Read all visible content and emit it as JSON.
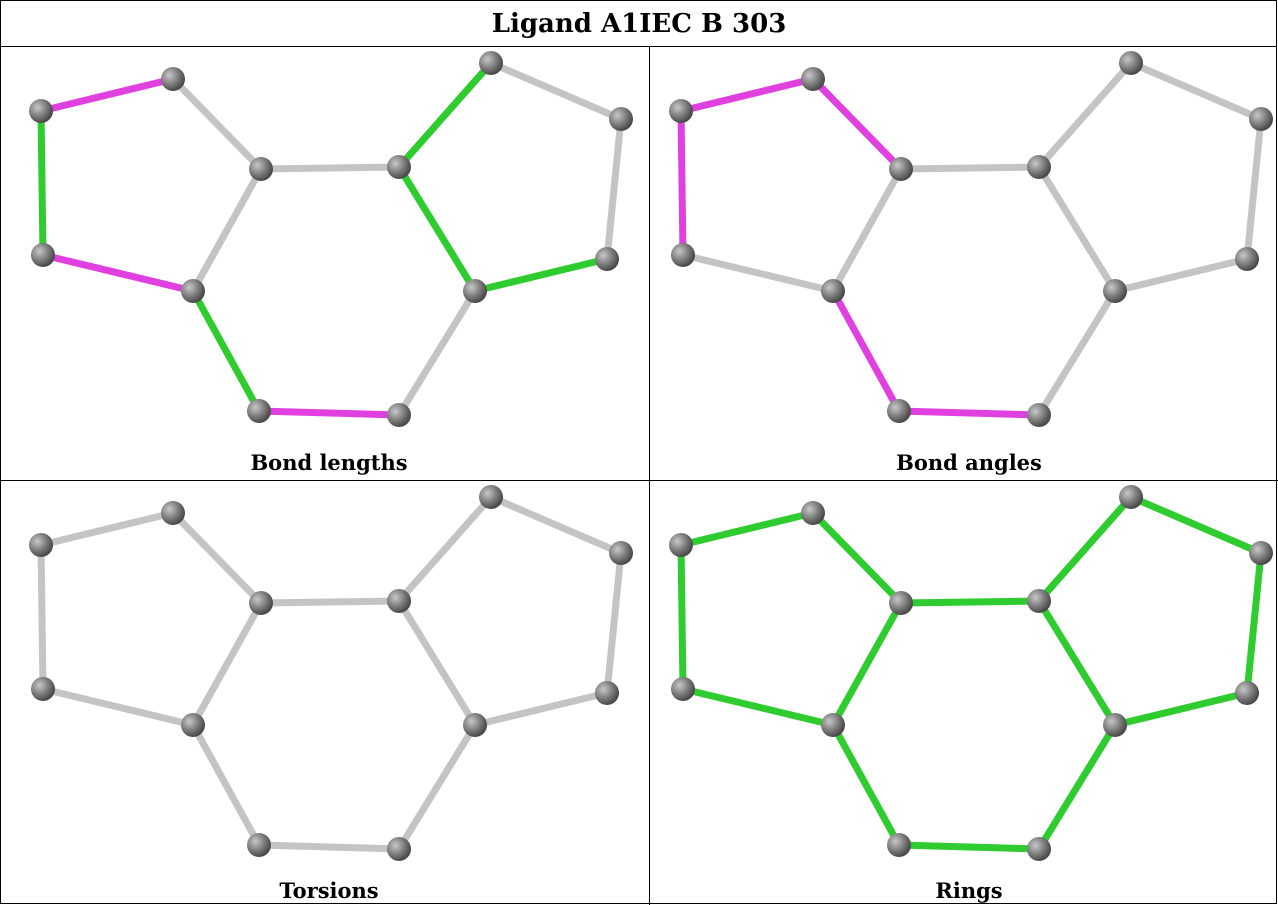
{
  "title": "Ligand A1IEC B 303",
  "colors": {
    "atom": "#7a7a7a",
    "bond_default": "#c4c4c4",
    "bond_magenta": "#e040e0",
    "bond_green": "#2ecc2e"
  },
  "panels": [
    {
      "label": "Bond lengths",
      "bond_colors": [
        "magenta",
        "green",
        "magenta",
        "green",
        "magenta",
        "grey",
        "grey",
        "grey",
        "grey",
        "green",
        "grey",
        "grey",
        "grey",
        "green",
        "green",
        "green"
      ]
    },
    {
      "label": "Bond angles",
      "bond_colors": [
        "magenta",
        "magenta",
        "grey",
        "magenta",
        "magenta",
        "magenta",
        "grey",
        "grey",
        "grey",
        "grey",
        "grey",
        "grey",
        "grey",
        "grey",
        "grey",
        "grey"
      ]
    },
    {
      "label": "Torsions",
      "bond_colors": [
        "grey",
        "grey",
        "grey",
        "grey",
        "grey",
        "grey",
        "grey",
        "grey",
        "grey",
        "grey",
        "grey",
        "grey",
        "grey",
        "grey",
        "grey",
        "grey"
      ]
    },
    {
      "label": "Rings",
      "bond_colors": [
        "green",
        "green",
        "green",
        "green",
        "green",
        "green",
        "green",
        "green",
        "green",
        "green",
        "green",
        "green",
        "green",
        "green",
        "green",
        "green"
      ]
    }
  ]
}
